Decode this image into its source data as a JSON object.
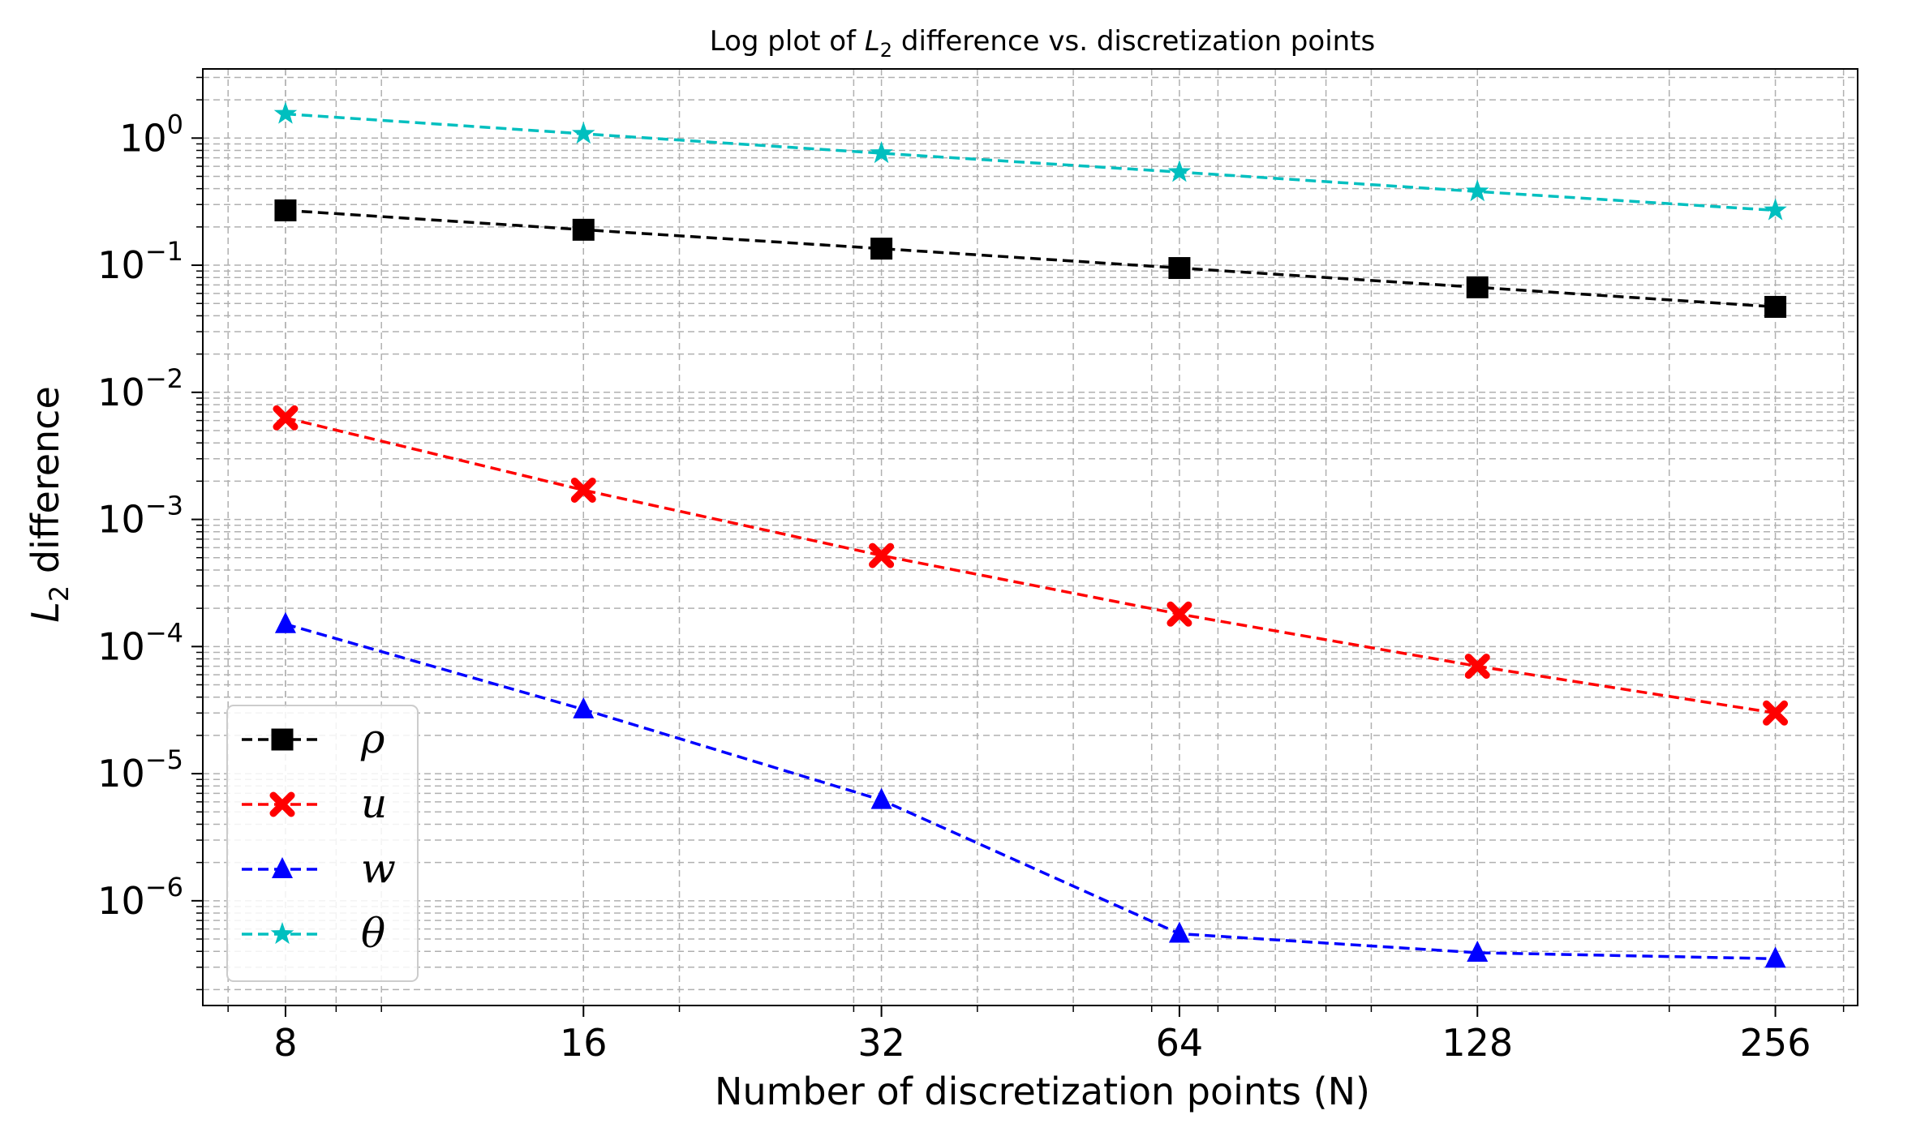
{
  "chart_data": {
    "type": "line",
    "title": "Log plot of L2 difference vs. discretization points",
    "title_parts": {
      "prefix": "Log plot of ",
      "var": "L",
      "sub": "2",
      "suffix": " difference vs. discretization points"
    },
    "xlabel": "Number of discretization points (N)",
    "ylabel": "L2 difference",
    "ylabel_parts": {
      "var": "L",
      "sub": "2",
      "suffix": " difference"
    },
    "xscale": "log2",
    "yscale": "log10",
    "xlim": [
      6.6,
      310
    ],
    "ylim": [
      1.5e-07,
      3.5
    ],
    "grid": true,
    "legend_position": "lower-left",
    "x": [
      8,
      16,
      32,
      64,
      128,
      256
    ],
    "x_tick_labels": [
      "8",
      "16",
      "32",
      "64",
      "128",
      "256"
    ],
    "y_ticks": [
      {
        "value": 1,
        "exp": "0"
      },
      {
        "value": 0.1,
        "exp": "−1"
      },
      {
        "value": 0.01,
        "exp": "−2"
      },
      {
        "value": 0.001,
        "exp": "−3"
      },
      {
        "value": 0.0001,
        "exp": "−4"
      },
      {
        "value": 1e-05,
        "exp": "−5"
      },
      {
        "value": 1e-06,
        "exp": "−6"
      }
    ],
    "y_tick_base": "10",
    "series": [
      {
        "name": "ρ",
        "color": "#000000",
        "marker": "square",
        "values": [
          0.27,
          0.19,
          0.135,
          0.095,
          0.067,
          0.047
        ]
      },
      {
        "name": "u",
        "color": "#ff0000",
        "marker": "x",
        "values": [
          0.0063,
          0.0017,
          0.00052,
          0.00018,
          7e-05,
          3e-05
        ]
      },
      {
        "name": "w",
        "color": "#0000ff",
        "marker": "triangle",
        "values": [
          0.00015,
          3.2e-05,
          6.2e-06,
          5.5e-07,
          3.9e-07,
          3.5e-07
        ]
      },
      {
        "name": "θ",
        "color": "#00bfbf",
        "marker": "star",
        "values": [
          1.55,
          1.08,
          0.76,
          0.54,
          0.38,
          0.27
        ]
      }
    ]
  }
}
